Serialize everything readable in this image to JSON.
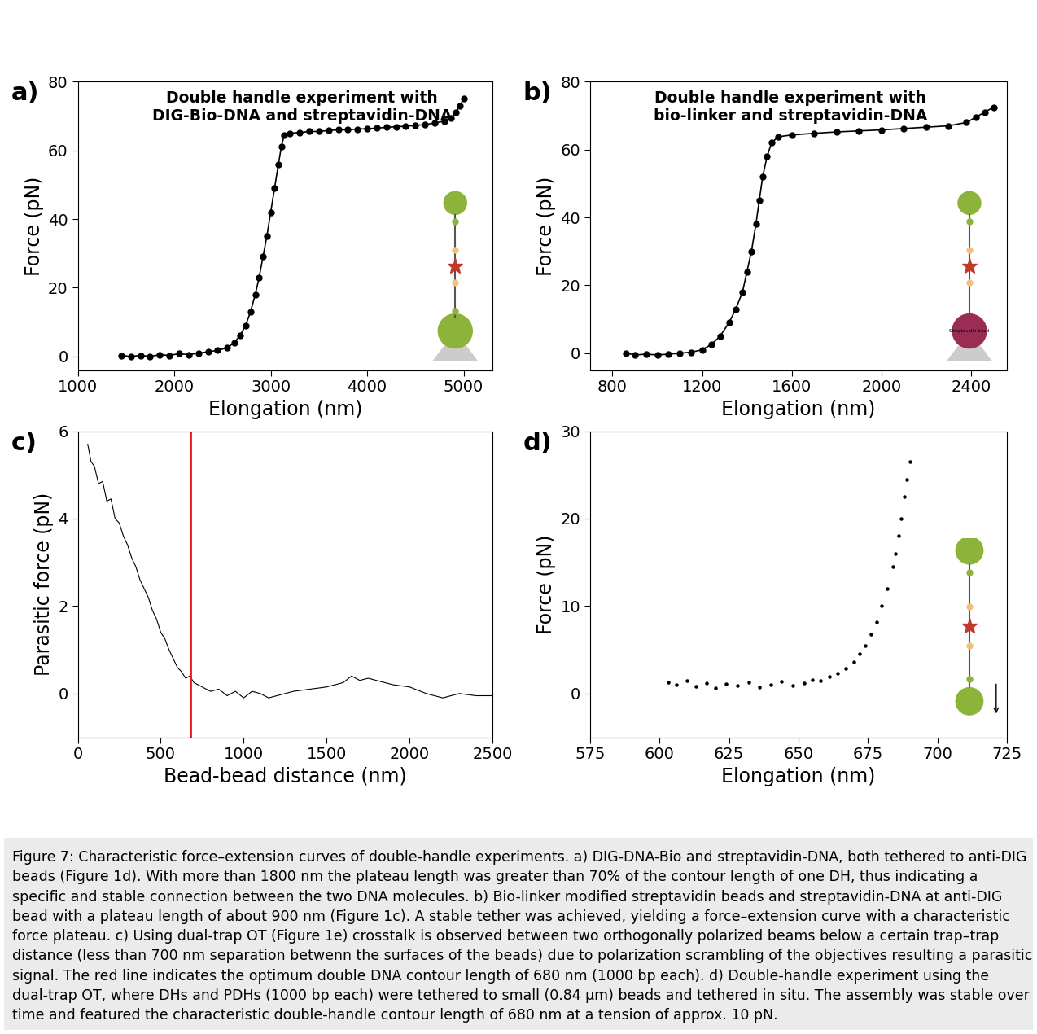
{
  "caption": "Figure 7: Characteristic force–extension curves of double-handle experiments. a) DIG-DNA-Bio and streptavidin-DNA, both tethered to anti-DIG beads (Figure 1d). With more than 1800 nm the plateau length was greater than 70% of the contour length of one DH, thus indicating a specific and stable connection between the two DNA molecules. b) Bio-linker modified streptavidin beads and streptavidin-DNA at anti-DIG bead with a plateau length of about 900 nm (Figure 1c). A stable tether was achieved, yielding a force–extension curve with a characteristic force plateau. c) Using dual-trap OT (Figure 1e) crosstalk is observed between two orthogonally polarized beams below a certain trap–trap distance (less than 700 nm separation betwenn the surfaces of the beads) due to polarization scrambling of the objectives resulting a parasitic signal. The red line indicates the optimum double DNA contour length of 680 nm (1000 bp each). d) Double-handle experiment using the dual-trap OT, where DHs and PDHs (1000 bp each) were tethered to small (0.84 μm) beads and tethered in situ. The assembly was stable over time and featured the characteristic double-handle contour length of 680 nm at a tension of approx. 10 pN.",
  "chart_data": [
    {
      "panel_label": "a)",
      "type": "line",
      "title": "Double handle experiment with\nDIG-Bio-DNA and streptavidin-DNA",
      "x_label": "Elongation (nm)",
      "y_label": "Force (pN)",
      "color": "#000000",
      "marker": "o",
      "line_style": "solid",
      "x": [
        1450,
        1550,
        1650,
        1750,
        1850,
        1950,
        2050,
        2150,
        2250,
        2350,
        2450,
        2550,
        2620,
        2680,
        2740,
        2790,
        2840,
        2880,
        2920,
        2960,
        3000,
        3040,
        3080,
        3110,
        3140,
        3200,
        3300,
        3400,
        3500,
        3600,
        3700,
        3800,
        3900,
        4000,
        4100,
        4200,
        4300,
        4400,
        4500,
        4600,
        4700,
        4800,
        4870,
        4920,
        4960,
        5000
      ],
      "values": [
        0.3,
        0,
        0.3,
        0,
        0.5,
        0.3,
        0.8,
        0.5,
        1,
        1.3,
        1.8,
        2.5,
        4,
        6,
        9,
        13,
        18,
        23,
        29,
        35,
        42,
        49,
        56,
        61,
        64.5,
        65,
        65.2,
        65.5,
        65.5,
        65.8,
        66,
        66,
        66.2,
        66.3,
        66.5,
        66.7,
        66.9,
        67,
        67.3,
        67.5,
        68,
        68.5,
        69.5,
        71,
        73,
        75
      ],
      "xlim": [
        1000,
        5300
      ],
      "xticks": [
        1000,
        2000,
        3000,
        4000,
        5000
      ],
      "ylim": [
        -4,
        80
      ],
      "yticks": [
        0,
        20,
        40,
        60,
        80
      ]
    },
    {
      "panel_label": "b)",
      "type": "line",
      "title": "Double handle experiment with\nbio-linker and streptavidin-DNA",
      "x_label": "Elongation (nm)",
      "y_label": "Force (pN)",
      "color": "#000000",
      "marker": "o",
      "line_style": "solid",
      "annotations": [
        "Streptavidin bead"
      ],
      "x": [
        860,
        900,
        950,
        1000,
        1050,
        1100,
        1150,
        1200,
        1240,
        1280,
        1320,
        1350,
        1380,
        1400,
        1420,
        1440,
        1455,
        1470,
        1490,
        1510,
        1540,
        1600,
        1700,
        1800,
        1900,
        2000,
        2100,
        2200,
        2300,
        2380,
        2420,
        2460,
        2500
      ],
      "values": [
        0,
        -0.5,
        -0.3,
        -0.5,
        -0.3,
        0,
        0.3,
        1,
        2.5,
        5,
        9,
        13,
        18,
        24,
        30,
        38,
        45,
        52,
        58,
        62,
        63.8,
        64.3,
        64.8,
        65.2,
        65.5,
        65.8,
        66.2,
        66.6,
        67,
        68,
        69.5,
        71,
        72.5
      ],
      "xlim": [
        700,
        2560
      ],
      "xticks": [
        800,
        1200,
        1600,
        2000,
        2400
      ],
      "ylim": [
        -5,
        80
      ],
      "yticks": [
        0,
        20,
        40,
        60,
        80
      ]
    },
    {
      "panel_label": "c)",
      "type": "line",
      "x_label": "Bead-bead distance (nm)",
      "y_label": "Parasitic force (pN)",
      "color": "#000000",
      "line_style": "solid",
      "reference_line": {
        "x": 680,
        "color": "#e41a1c"
      },
      "x": [
        60,
        80,
        100,
        125,
        150,
        175,
        200,
        225,
        250,
        275,
        300,
        325,
        350,
        375,
        400,
        425,
        450,
        475,
        500,
        525,
        550,
        575,
        600,
        625,
        650,
        675,
        700,
        750,
        800,
        850,
        900,
        950,
        1000,
        1050,
        1100,
        1150,
        1200,
        1300,
        1400,
        1500,
        1600,
        1650,
        1700,
        1750,
        1800,
        1850,
        1900,
        2000,
        2100,
        2200,
        2300,
        2400,
        2500
      ],
      "values": [
        5.7,
        5.3,
        5.2,
        4.8,
        4.85,
        4.4,
        4.45,
        4.0,
        3.9,
        3.6,
        3.4,
        3.1,
        2.9,
        2.6,
        2.4,
        2.2,
        1.9,
        1.7,
        1.4,
        1.25,
        1.0,
        0.8,
        0.6,
        0.5,
        0.35,
        0.4,
        0.25,
        0.15,
        0.05,
        0.1,
        -0.05,
        0.05,
        -0.1,
        0.05,
        0,
        -0.1,
        -0.05,
        0.05,
        0.1,
        0.15,
        0.25,
        0.4,
        0.3,
        0.35,
        0.3,
        0.25,
        0.2,
        0.15,
        0,
        -0.1,
        0,
        -0.05,
        -0.05
      ],
      "xlim": [
        0,
        2500
      ],
      "xticks": [
        0,
        500,
        1000,
        1500,
        2000,
        2500
      ],
      "ylim": [
        -1,
        6
      ],
      "yticks": [
        0,
        2,
        4,
        6
      ]
    },
    {
      "panel_label": "d)",
      "type": "scatter",
      "x_label": "Elongation (nm)",
      "y_label": "Force (pN)",
      "color": "#000000",
      "marker": "o",
      "x": [
        603,
        606,
        610,
        613,
        617,
        620,
        624,
        628,
        632,
        636,
        640,
        644,
        648,
        652,
        655,
        658,
        661,
        664,
        667,
        670,
        672,
        674,
        676,
        678,
        680,
        682,
        684,
        685,
        686,
        687,
        688,
        689,
        690
      ],
      "values": [
        1.3,
        1.0,
        1.5,
        0.8,
        1.2,
        0.6,
        1.1,
        0.9,
        1.3,
        0.7,
        1.0,
        1.4,
        0.9,
        1.2,
        1.6,
        1.5,
        1.9,
        2.3,
        2.9,
        3.6,
        4.5,
        5.5,
        6.8,
        8.2,
        10,
        12,
        14.5,
        16,
        18,
        20,
        22.5,
        24.5,
        26.5
      ],
      "xlim": [
        575,
        725
      ],
      "xticks": [
        575,
        600,
        625,
        650,
        675,
        700,
        725
      ],
      "ylim": [
        -5,
        30
      ],
      "yticks": [
        0,
        10,
        20,
        30
      ]
    }
  ]
}
